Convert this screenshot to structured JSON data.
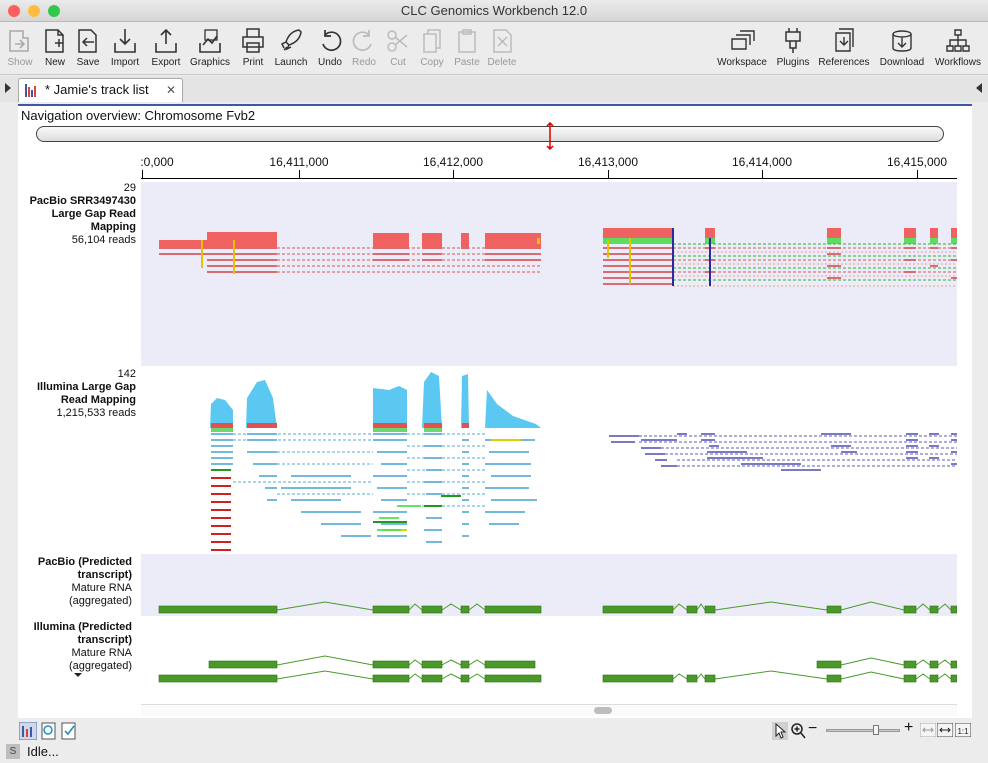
{
  "window": {
    "title": "CLC Genomics Workbench 12.0"
  },
  "toolbar": {
    "show": "Show",
    "new": "New",
    "save": "Save",
    "import": "Import",
    "export": "Export",
    "graphics": "Graphics",
    "print": "Print",
    "launch": "Launch",
    "undo": "Undo",
    "redo": "Redo",
    "cut": "Cut",
    "copy": "Copy",
    "paste": "Paste",
    "delete": "Delete",
    "workspace": "Workspace",
    "plugins": "Plugins",
    "references": "References",
    "download": "Download",
    "workflows": "Workflows"
  },
  "tab": {
    "label": "* Jamie's track list",
    "close": "✕"
  },
  "navigation": {
    "title": "Navigation overview: Chromosome Fvb2"
  },
  "ruler": {
    "ticks": [
      ":0,000",
      "16,411,000",
      "16,412,000",
      "16,413,000",
      "16,414,000",
      "16,415,000"
    ]
  },
  "tracks": [
    {
      "max": "29",
      "name_lines": [
        "PacBio SRR3497430",
        "Large Gap Read",
        "Mapping"
      ],
      "reads": "56,104 reads"
    },
    {
      "max": "142",
      "name_lines": [
        "Illumina Large Gap",
        "Read Mapping"
      ],
      "reads": "1,215,533 reads"
    },
    {
      "name_lines": [
        "PacBio (Predicted",
        "transcript)"
      ],
      "sub_lines": [
        "Mature RNA",
        "(aggregated)"
      ]
    },
    {
      "name_lines": [
        "Illumina (Predicted",
        "transcript)"
      ],
      "sub_lines": [
        "Mature RNA",
        "(aggregated)"
      ]
    }
  ],
  "status": {
    "text": "Idle...",
    "badge": "S"
  },
  "colors": {
    "accent": "#3b5aa0",
    "pacbio": "#f06060",
    "illumina": "#5bc8f2",
    "transcript": "#4a9a2a"
  }
}
